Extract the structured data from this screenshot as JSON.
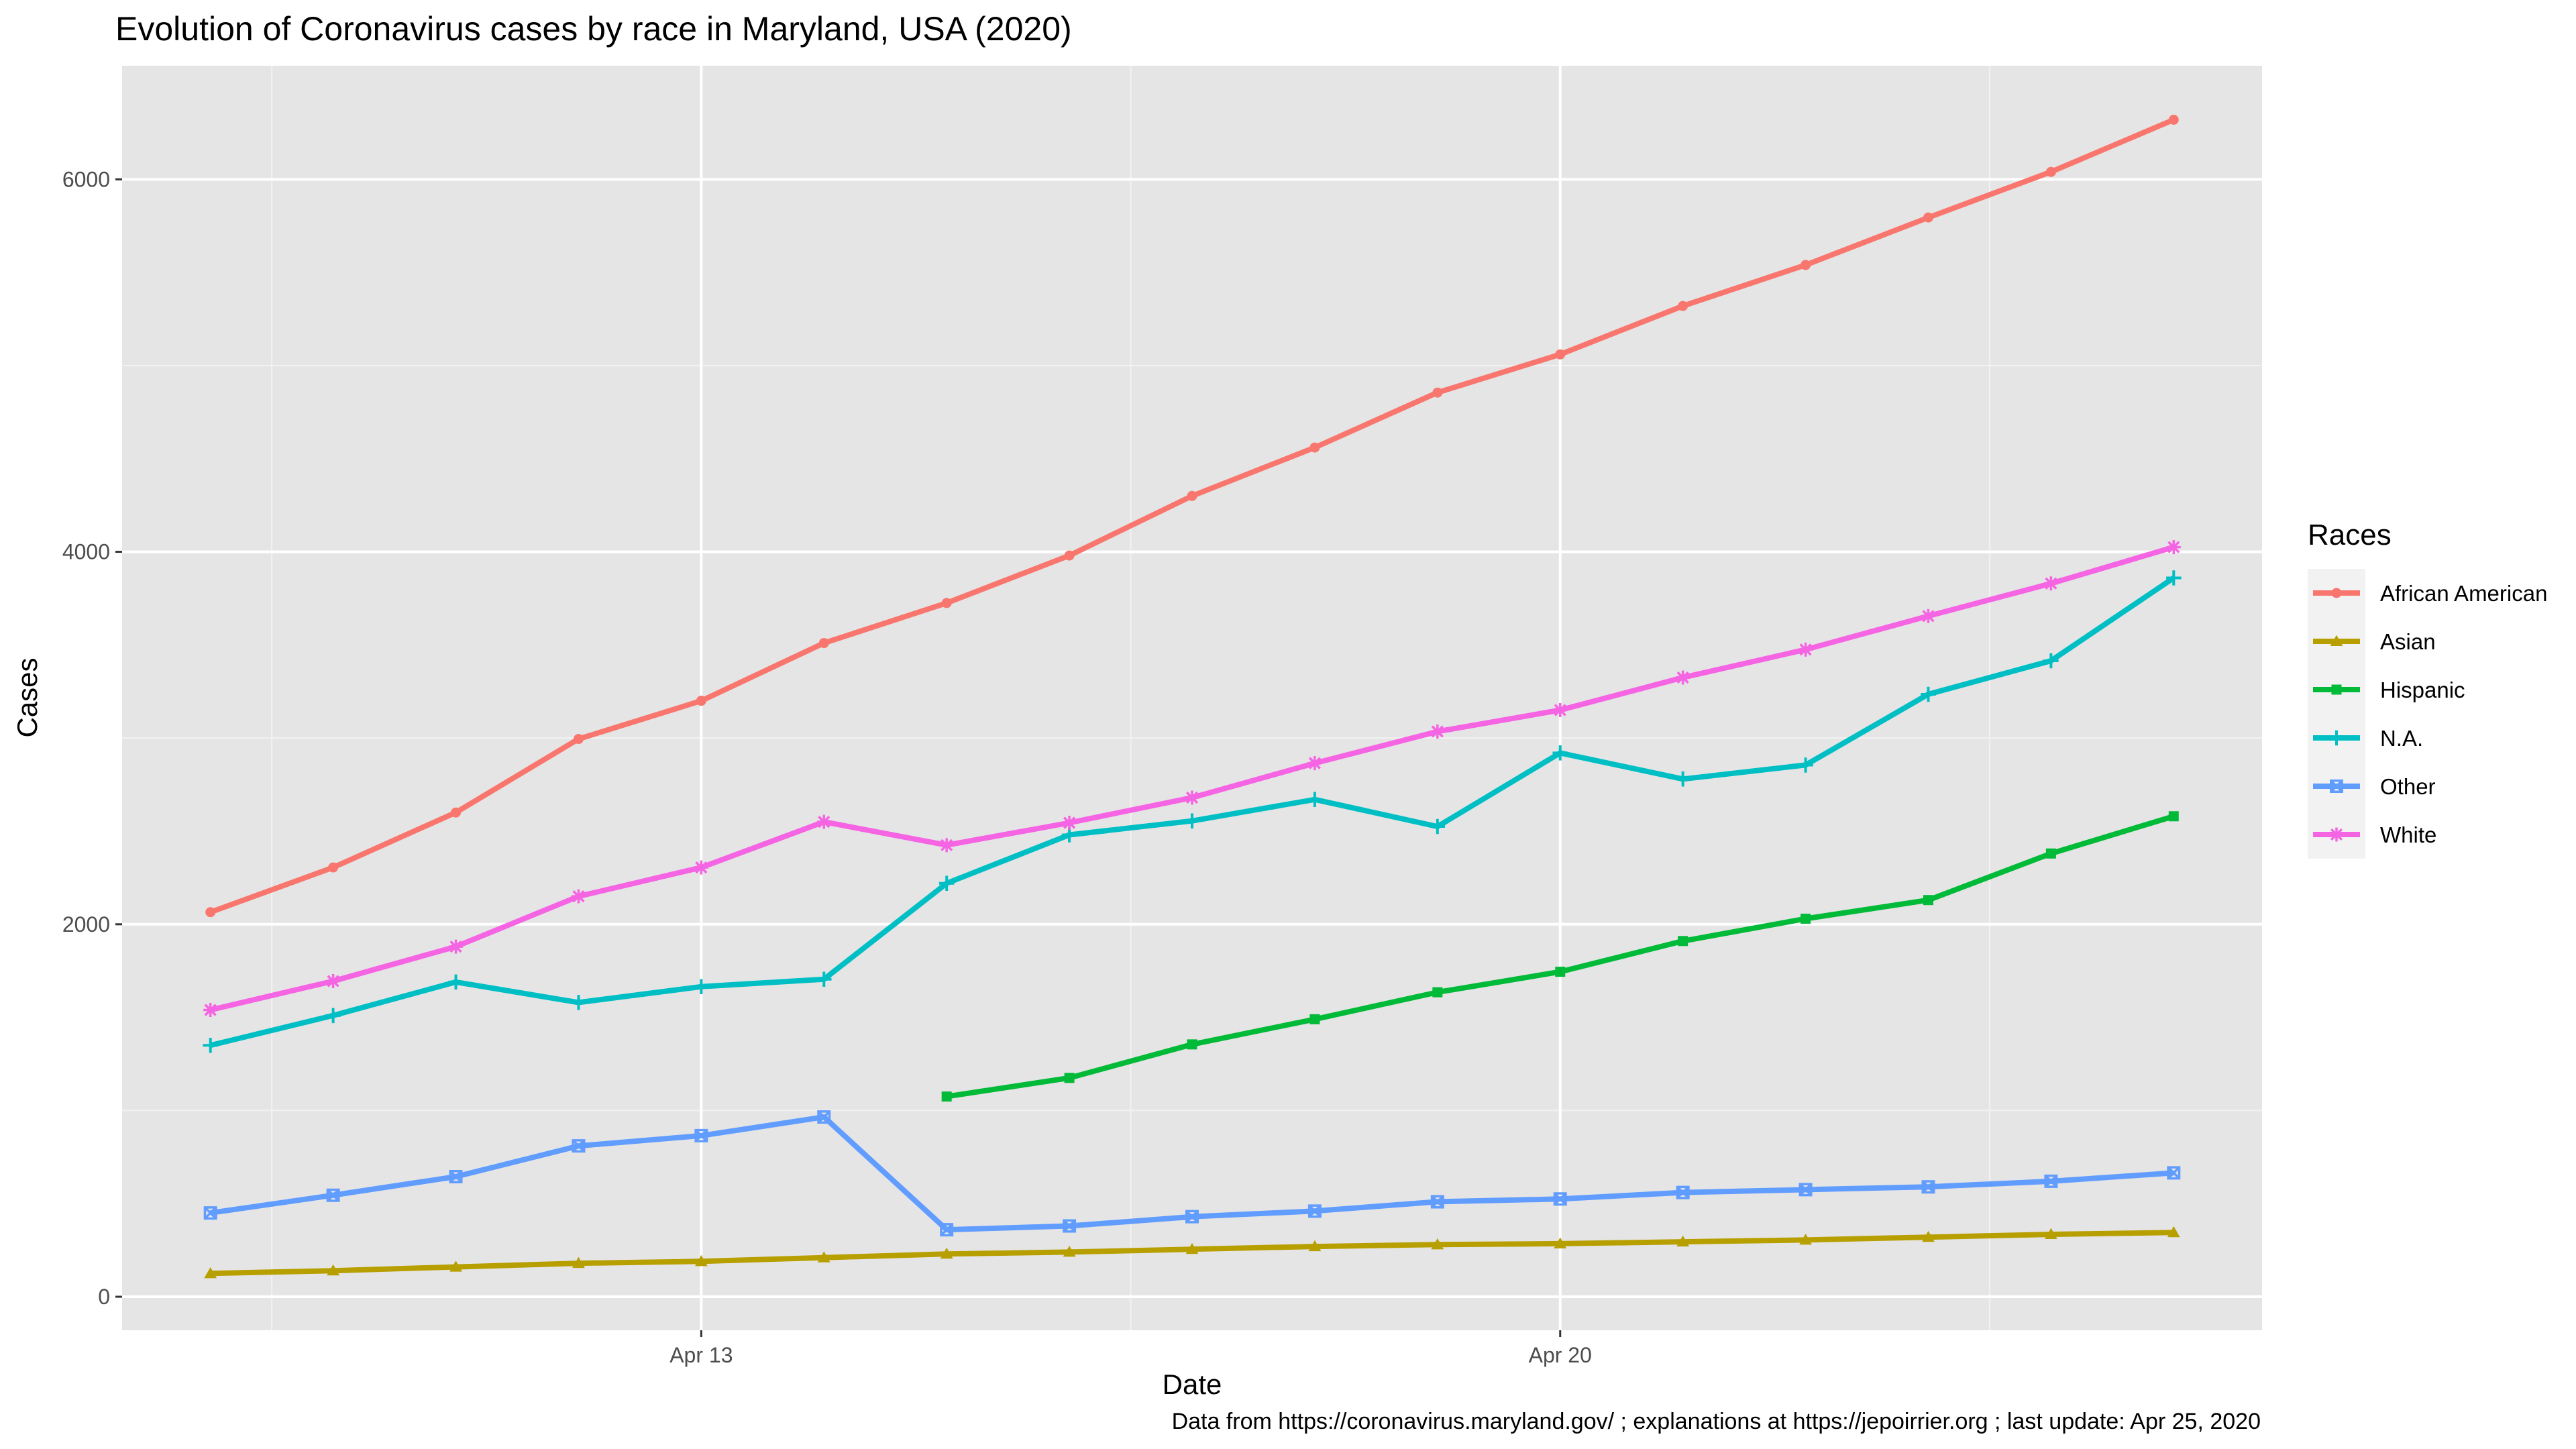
{
  "chart_data": {
    "type": "line",
    "title": "Evolution of Coronavirus cases by race in Maryland, USA (2020)",
    "xlabel": "Date",
    "ylabel": "Cases",
    "caption": "Data from https://coronavirus.maryland.gov/ ; explanations at https://jepoirrier.org ; last update: Apr 25, 2020",
    "x": [
      "2020-04-09",
      "2020-04-10",
      "2020-04-11",
      "2020-04-12",
      "2020-04-13",
      "2020-04-14",
      "2020-04-15",
      "2020-04-16",
      "2020-04-17",
      "2020-04-18",
      "2020-04-19",
      "2020-04-20",
      "2020-04-21",
      "2020-04-22",
      "2020-04-23",
      "2020-04-24",
      "2020-04-25"
    ],
    "x_ticks": [
      {
        "date": "2020-04-13",
        "label": "Apr 13"
      },
      {
        "date": "2020-04-20",
        "label": "Apr 20"
      }
    ],
    "y_ticks": [
      0,
      2000,
      4000,
      6000
    ],
    "ylim": [
      -180,
      6610
    ],
    "grid": true,
    "panel_background": "#e5e5e5",
    "legend": {
      "title": "Races",
      "position": "right"
    },
    "series": [
      {
        "name": "African American",
        "color": "#f8766d",
        "marker": "circle",
        "values": [
          2065,
          2305,
          2600,
          2995,
          3200,
          3510,
          3725,
          3980,
          4300,
          4560,
          4855,
          5060,
          5320,
          5540,
          5795,
          6040,
          6320
        ]
      },
      {
        "name": "Asian",
        "color": "#b79f00",
        "marker": "triangle",
        "values": [
          125,
          140,
          160,
          180,
          190,
          210,
          230,
          240,
          255,
          270,
          280,
          285,
          295,
          305,
          320,
          335,
          345
        ]
      },
      {
        "name": "Hispanic",
        "color": "#00ba38",
        "marker": "square",
        "values": [
          null,
          null,
          null,
          null,
          null,
          null,
          1075,
          1175,
          1355,
          1490,
          1635,
          1745,
          1910,
          2030,
          2130,
          2380,
          2580
        ]
      },
      {
        "name": "N.A.",
        "color": "#00bfc4",
        "marker": "plus",
        "values": [
          1350,
          1510,
          1690,
          1580,
          1665,
          1705,
          2220,
          2480,
          2555,
          2670,
          2525,
          2920,
          2780,
          2855,
          3235,
          3415,
          3860
        ]
      },
      {
        "name": "Other",
        "color": "#619cff",
        "marker": "boxcross",
        "values": [
          450,
          545,
          645,
          810,
          865,
          965,
          360,
          380,
          430,
          460,
          510,
          525,
          560,
          575,
          590,
          620,
          665
        ]
      },
      {
        "name": "White",
        "color": "#f564e3",
        "marker": "star",
        "values": [
          1540,
          1695,
          1880,
          2150,
          2305,
          2550,
          2425,
          2545,
          2680,
          2865,
          3035,
          3150,
          3325,
          3475,
          3655,
          3830,
          4025
        ]
      }
    ]
  }
}
